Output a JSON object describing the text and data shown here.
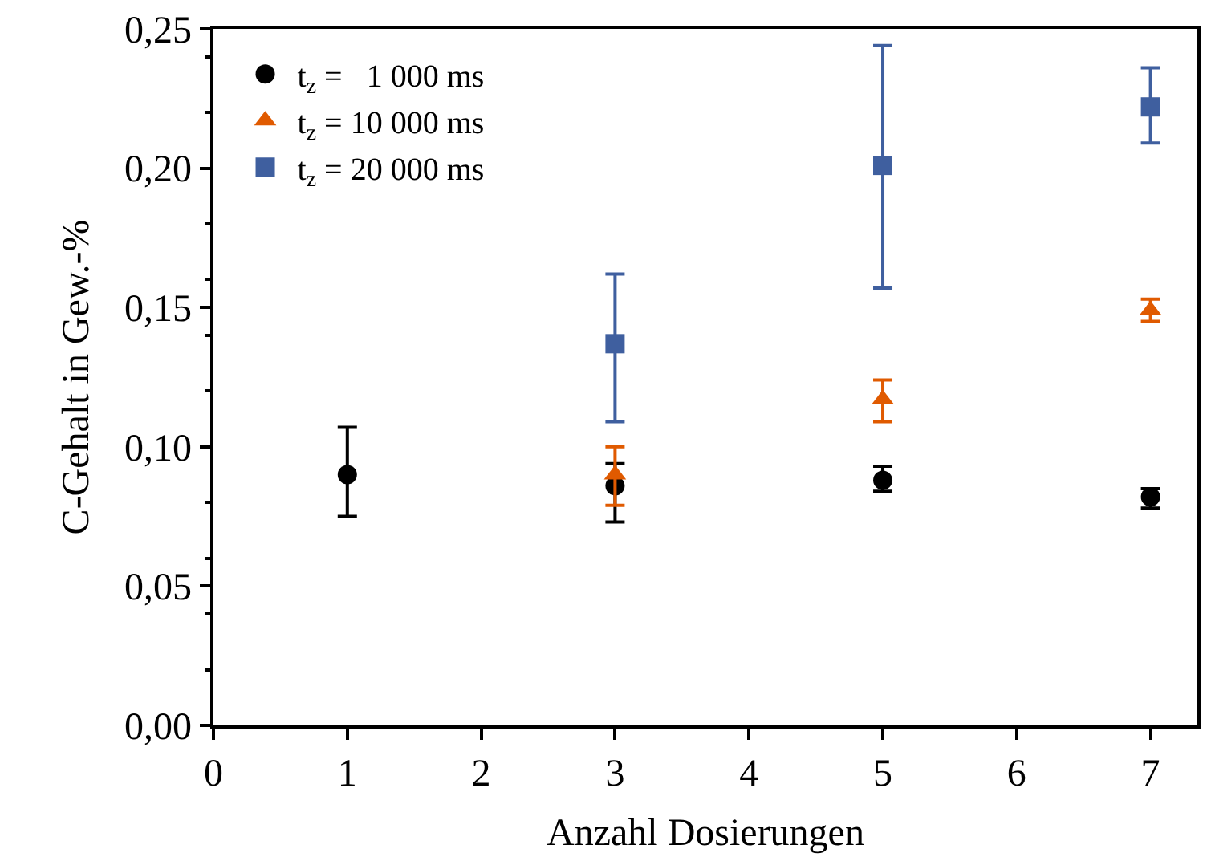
{
  "chart_data": {
    "type": "scatter",
    "xlabel": "Anzahl Dosierungen",
    "ylabel": "C-Gehalt in Gew.-%",
    "xlim": [
      0,
      7.35
    ],
    "xticks": [
      0,
      1,
      2,
      3,
      4,
      5,
      6,
      7
    ],
    "ylim": [
      0,
      0.25
    ],
    "yticks": [
      {
        "value": 0,
        "label": "0,00"
      },
      {
        "value": 0.05,
        "label": "0,05"
      },
      {
        "value": 0.1,
        "label": "0,10"
      },
      {
        "value": 0.15,
        "label": "0,15"
      },
      {
        "value": 0.2,
        "label": "0,20"
      },
      {
        "value": 0.25,
        "label": "0,25"
      }
    ],
    "legend": "top left",
    "series": [
      {
        "name": "t$_{z}$ =   1 000 ms",
        "color": "#000000",
        "marker": "circle",
        "x": [
          1,
          3,
          5,
          7
        ],
        "values": [
          0.09,
          0.086,
          0.088,
          0.082
        ],
        "errors": [
          [
            0.075,
            0.107
          ],
          [
            0.073,
            0.094
          ],
          [
            0.084,
            0.093
          ],
          [
            0.078,
            0.085
          ]
        ]
      },
      {
        "name": "t$_{z}$ = 10 000 ms",
        "color": "#e05a00",
        "marker": "triangle",
        "x": [
          3,
          5,
          7
        ],
        "values": [
          0.09,
          0.117,
          0.149
        ],
        "errors": [
          [
            0.079,
            0.1
          ],
          [
            0.109,
            0.124
          ],
          [
            0.145,
            0.153
          ]
        ]
      },
      {
        "name": "t$_{z}$ = 20 000 ms",
        "color": "#3f5f9f",
        "marker": "square",
        "x": [
          3,
          5,
          7
        ],
        "values": [
          0.137,
          0.201,
          0.222
        ],
        "errors": [
          [
            0.109,
            0.162
          ],
          [
            0.157,
            0.244
          ],
          [
            0.209,
            0.236
          ]
        ]
      }
    ]
  }
}
